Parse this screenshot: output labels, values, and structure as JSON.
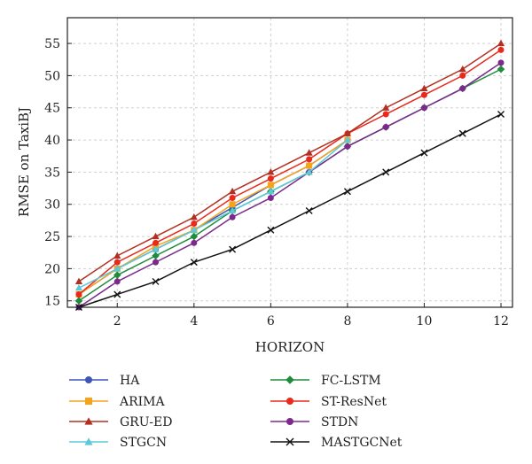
{
  "chart_data": {
    "type": "line",
    "xlabel": "HORIZON",
    "ylabel": "RMSE on TaxiBJ",
    "x": [
      1,
      2,
      3,
      4,
      5,
      6,
      7,
      8,
      9,
      10,
      11,
      12
    ],
    "xlim": [
      0.7,
      12.3
    ],
    "ylim": [
      14,
      59
    ],
    "xticks": [
      2,
      4,
      6,
      8,
      10,
      12
    ],
    "yticks": [
      15,
      20,
      25,
      30,
      35,
      40,
      45,
      50,
      55
    ],
    "grid": true,
    "legend_position": "bottom",
    "series": [
      {
        "name": "HA",
        "color": "#3d55b8",
        "marker": "circle",
        "values": [
          16,
          20,
          23,
          26,
          29.5,
          33,
          36,
          40,
          null,
          null,
          null,
          null
        ]
      },
      {
        "name": "FC-LSTM",
        "color": "#1f8c3c",
        "marker": "diamond",
        "values": [
          15,
          19,
          22,
          25,
          29,
          32,
          35,
          39,
          42,
          45,
          48,
          51
        ]
      },
      {
        "name": "ARIMA",
        "color": "#f5a31a",
        "marker": "square",
        "values": [
          16,
          20,
          23.5,
          26,
          30,
          33,
          36,
          40,
          null,
          null,
          null,
          null
        ]
      },
      {
        "name": "ST-ResNet",
        "color": "#e8291c",
        "marker": "circle",
        "values": [
          16,
          21,
          24,
          27,
          31,
          34,
          37,
          41,
          44,
          47,
          50,
          54
        ]
      },
      {
        "name": "GRU-ED",
        "color": "#b23021",
        "marker": "triangle",
        "values": [
          18,
          22,
          25,
          28,
          32,
          35,
          38,
          41,
          45,
          48,
          51,
          55
        ]
      },
      {
        "name": "STDN",
        "color": "#7b2a8c",
        "marker": "circle",
        "values": [
          14,
          18,
          21,
          24,
          28,
          31,
          35,
          39,
          42,
          45,
          48,
          52
        ]
      },
      {
        "name": "STGCN",
        "color": "#5cc8d8",
        "marker": "triangle",
        "values": [
          17,
          20,
          23,
          26,
          29,
          32,
          35,
          40,
          null,
          null,
          null,
          null
        ]
      },
      {
        "name": "MASTGCNet",
        "color": "#111111",
        "marker": "x",
        "values": [
          14,
          16,
          18,
          21,
          23,
          26,
          29,
          32,
          35,
          38,
          41,
          44
        ]
      }
    ]
  }
}
